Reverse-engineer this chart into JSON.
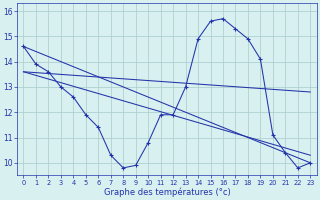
{
  "xlabel": "Graphe des températures (°c)",
  "background_color": "#d8f0f0",
  "grid_color": "#b0d0d0",
  "line_color": "#2233aa",
  "xlim": [
    -0.5,
    23.5
  ],
  "ylim": [
    9.5,
    16.3
  ],
  "xtick_labels": [
    "0",
    "1",
    "2",
    "3",
    "4",
    "5",
    "6",
    "7",
    "8",
    "9",
    "10",
    "11",
    "12",
    "13",
    "14",
    "15",
    "16",
    "17",
    "18",
    "19",
    "20",
    "21",
    "22",
    "23"
  ],
  "ytick_labels": [
    "10",
    "11",
    "12",
    "13",
    "14",
    "15",
    "16"
  ],
  "yticks": [
    10,
    11,
    12,
    13,
    14,
    15,
    16
  ],
  "series_main": {
    "x": [
      0,
      1,
      2,
      3,
      4,
      5,
      6,
      7,
      8,
      9,
      10,
      11,
      12,
      13,
      14,
      15,
      16,
      17,
      18,
      19,
      20,
      21,
      22,
      23
    ],
    "y": [
      14.6,
      13.9,
      13.6,
      13.0,
      12.6,
      11.9,
      11.4,
      10.3,
      9.8,
      9.9,
      10.8,
      11.9,
      11.9,
      13.0,
      14.9,
      15.6,
      15.7,
      15.3,
      14.9,
      14.1,
      11.1,
      10.4,
      9.8,
      10.0
    ]
  },
  "series_lines": [
    {
      "x": [
        0,
        23
      ],
      "y": [
        14.6,
        10.0
      ]
    },
    {
      "x": [
        0,
        23
      ],
      "y": [
        13.6,
        12.8
      ]
    },
    {
      "x": [
        0,
        23
      ],
      "y": [
        13.6,
        10.3
      ]
    }
  ]
}
